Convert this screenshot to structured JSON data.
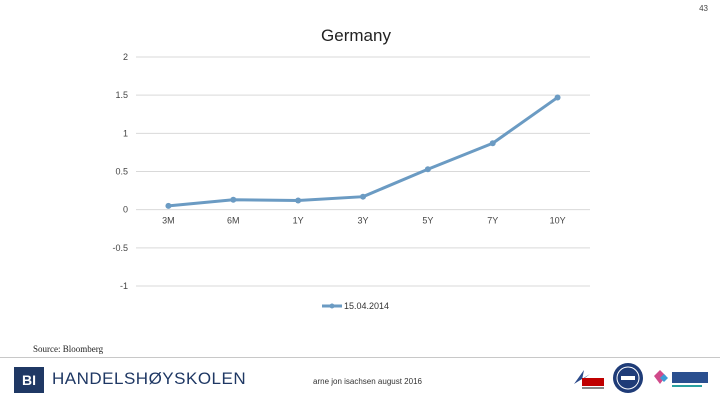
{
  "page_number": "43",
  "source": "Source: Bloomberg",
  "footer": {
    "logo_letters": "BI",
    "school_name": "HANDELSHØYSKOLEN",
    "author": "arne jon isachsen august 2016"
  },
  "colors": {
    "series": "#6b9bc3",
    "grid": "#d9d9d9",
    "logo_blue": "#1f3864"
  },
  "icons": [
    "equis-accreditation-logo",
    "aacsb-accreditation-seal",
    "amba-accreditation-logo"
  ],
  "chart_data": {
    "type": "line",
    "title": "Germany",
    "categories": [
      "3M",
      "6M",
      "1Y",
      "3Y",
      "5Y",
      "7Y",
      "10Y"
    ],
    "series": [
      {
        "name": "15.04.2014",
        "values": [
          0.05,
          0.13,
          0.12,
          0.17,
          0.53,
          0.87,
          1.47
        ]
      }
    ],
    "ylim": [
      -1,
      2
    ],
    "yticks": [
      "2",
      "1.5",
      "1",
      "0.5",
      "0",
      "-0.5",
      "-1"
    ],
    "ytick_values": [
      2,
      1.5,
      1,
      0.5,
      0,
      -0.5,
      -1
    ],
    "grid": true,
    "legend": "bottom"
  }
}
